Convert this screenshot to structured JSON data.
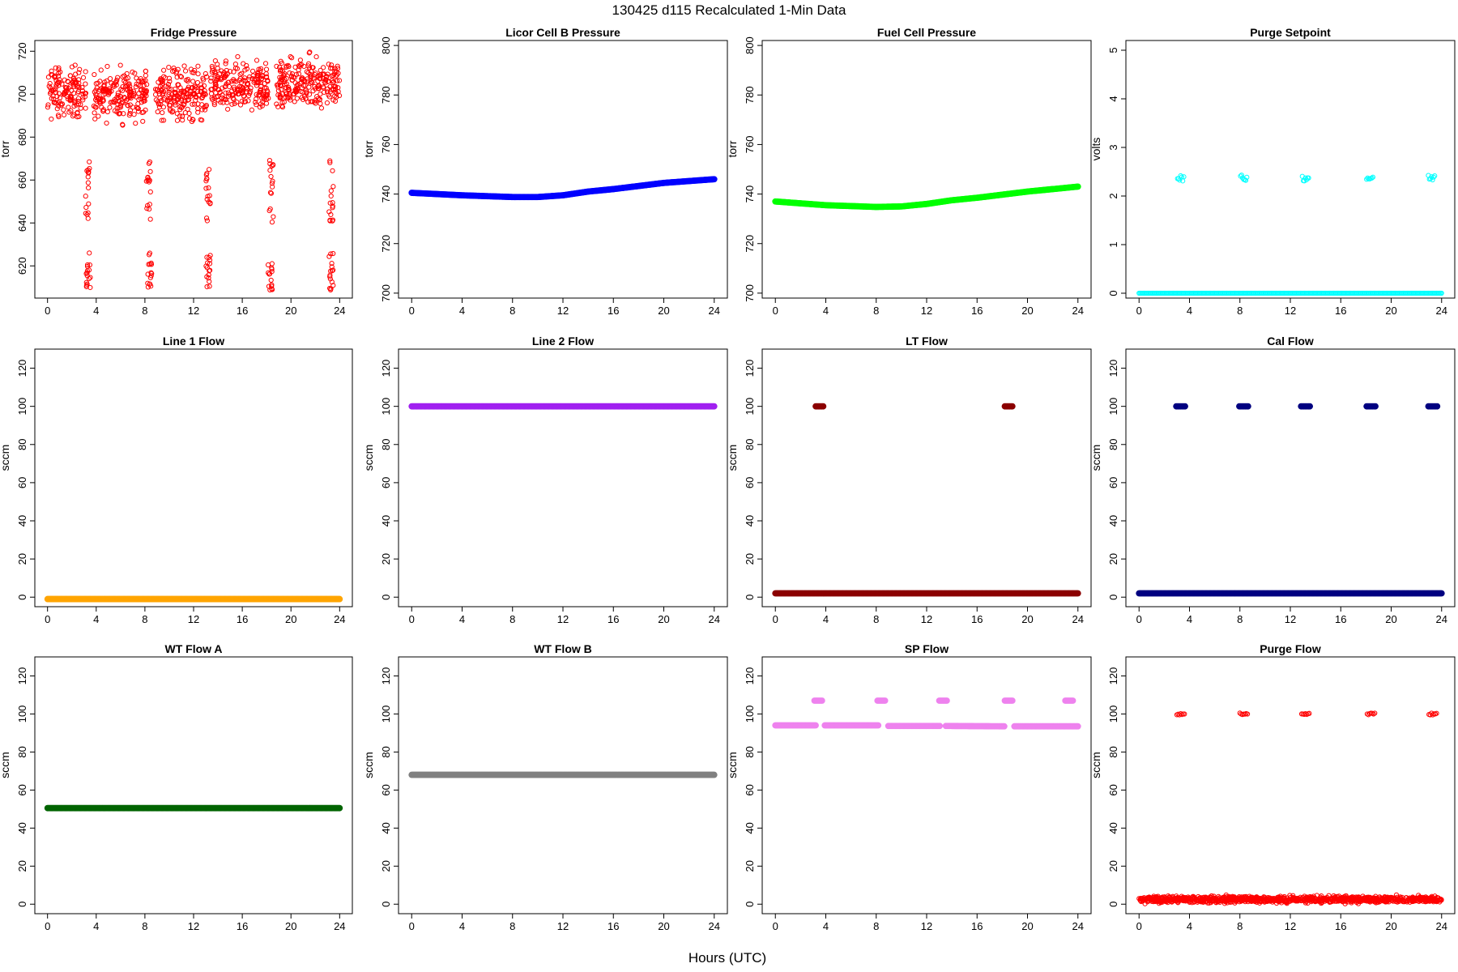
{
  "figure": {
    "title": "130425   d115   Recalculated 1-Min Data",
    "xlabel": "Hours (UTC)"
  },
  "chart_data": [
    {
      "type": "scatter",
      "title": "Fridge Pressure",
      "ylabel": "torr",
      "color": "#ff0000",
      "marker": "open",
      "xlim": [
        0,
        24
      ],
      "ylim": [
        605,
        725
      ],
      "xticks": [
        0,
        4,
        8,
        12,
        16,
        20,
        24
      ],
      "yticks": [
        620,
        640,
        660,
        680,
        700,
        720
      ],
      "series": [
        {
          "kind": "band",
          "segments": [
            [
              0,
              3.2,
              701
            ],
            [
              3.8,
              8.2,
              700
            ],
            [
              8.8,
              13.1,
              700
            ],
            [
              13.4,
              18.2,
              703
            ],
            [
              18.8,
              24,
              705
            ]
          ],
          "spread": 8
        },
        {
          "kind": "cluster",
          "x": [
            3.3,
            8.3,
            13.2,
            18.4,
            23.3
          ],
          "ylow": 640,
          "yhigh": 670
        },
        {
          "kind": "cluster",
          "x": [
            3.35,
            8.4,
            13.2,
            18.3,
            23.3
          ],
          "ylow": 608,
          "yhigh": 626
        }
      ]
    },
    {
      "type": "scatter",
      "title": "Licor Cell B Pressure",
      "ylabel": "torr",
      "color": "#0000ff",
      "marker": "filled",
      "xlim": [
        0,
        24
      ],
      "ylim": [
        698,
        802
      ],
      "xticks": [
        0,
        4,
        8,
        12,
        16,
        20,
        24
      ],
      "yticks": [
        700,
        720,
        740,
        760,
        780,
        800
      ],
      "series": [
        {
          "kind": "line",
          "x": [
            0,
            4,
            8,
            10,
            12,
            14,
            16,
            20,
            24
          ],
          "y": [
            740.5,
            739.5,
            738.8,
            738.8,
            739.5,
            741,
            742,
            744.5,
            746
          ]
        }
      ]
    },
    {
      "type": "scatter",
      "title": "Fuel Cell Pressure",
      "ylabel": "torr",
      "color": "#00ff00",
      "marker": "filled",
      "xlim": [
        0,
        24
      ],
      "ylim": [
        698,
        802
      ],
      "xticks": [
        0,
        4,
        8,
        12,
        16,
        20,
        24
      ],
      "yticks": [
        700,
        720,
        740,
        760,
        780,
        800
      ],
      "series": [
        {
          "kind": "line",
          "x": [
            0,
            4,
            8,
            10,
            12,
            14,
            16,
            20,
            24
          ],
          "y": [
            737,
            735.5,
            734.8,
            735,
            736,
            737.5,
            738.5,
            741,
            743
          ]
        }
      ]
    },
    {
      "type": "scatter",
      "title": "Purge Setpoint",
      "ylabel": "volts",
      "color": "#00ffff",
      "marker": "open",
      "xlim": [
        0,
        24
      ],
      "ylim": [
        -0.1,
        5.2
      ],
      "xticks": [
        0,
        4,
        8,
        12,
        16,
        20,
        24
      ],
      "yticks": [
        0,
        1,
        2,
        3,
        4,
        5
      ],
      "series": [
        {
          "kind": "line",
          "x": [
            0,
            24
          ],
          "y": [
            0,
            0
          ]
        },
        {
          "kind": "bumps",
          "x": [
            3.3,
            8.3,
            13.2,
            18.3,
            23.2
          ],
          "y": 2.37,
          "spread": 0.06,
          "width": 0.5
        }
      ]
    },
    {
      "type": "scatter",
      "title": "Line 1 Flow",
      "ylabel": "sccm",
      "color": "#ffa500",
      "marker": "filled",
      "xlim": [
        0,
        24
      ],
      "ylim": [
        -5,
        130
      ],
      "xticks": [
        0,
        4,
        8,
        12,
        16,
        20,
        24
      ],
      "yticks": [
        0,
        20,
        40,
        60,
        80,
        100,
        120
      ],
      "series": [
        {
          "kind": "line",
          "x": [
            0,
            24
          ],
          "y": [
            -1,
            -1
          ]
        }
      ]
    },
    {
      "type": "scatter",
      "title": "Line 2 Flow",
      "ylabel": "sccm",
      "color": "#a020f0",
      "marker": "filled",
      "xlim": [
        0,
        24
      ],
      "ylim": [
        -5,
        130
      ],
      "xticks": [
        0,
        4,
        8,
        12,
        16,
        20,
        24
      ],
      "yticks": [
        0,
        20,
        40,
        60,
        80,
        100,
        120
      ],
      "series": [
        {
          "kind": "line",
          "x": [
            0,
            24
          ],
          "y": [
            100,
            100
          ]
        }
      ]
    },
    {
      "type": "scatter",
      "title": "LT Flow",
      "ylabel": "sccm",
      "color": "#8b0000",
      "marker": "filled",
      "xlim": [
        0,
        24
      ],
      "ylim": [
        -5,
        130
      ],
      "xticks": [
        0,
        4,
        8,
        12,
        16,
        20,
        24
      ],
      "yticks": [
        0,
        20,
        40,
        60,
        80,
        100,
        120
      ],
      "series": [
        {
          "kind": "line",
          "x": [
            0,
            24
          ],
          "y": [
            2,
            2
          ]
        },
        {
          "kind": "bumps",
          "x": [
            3.5,
            18.5
          ],
          "y": 100,
          "spread": 0,
          "width": 0.6
        }
      ]
    },
    {
      "type": "scatter",
      "title": "Cal Flow",
      "ylabel": "sccm",
      "color": "#000080",
      "marker": "filled",
      "xlim": [
        0,
        24
      ],
      "ylim": [
        -5,
        130
      ],
      "xticks": [
        0,
        4,
        8,
        12,
        16,
        20,
        24
      ],
      "yticks": [
        0,
        20,
        40,
        60,
        80,
        100,
        120
      ],
      "series": [
        {
          "kind": "line",
          "x": [
            0,
            24
          ],
          "y": [
            2,
            2
          ]
        },
        {
          "kind": "bumps",
          "x": [
            3.3,
            8.3,
            13.2,
            18.4,
            23.3
          ],
          "y": 100,
          "spread": 0,
          "width": 0.7
        }
      ]
    },
    {
      "type": "scatter",
      "title": "WT Flow A",
      "ylabel": "sccm",
      "color": "#006400",
      "marker": "filled",
      "xlim": [
        0,
        24
      ],
      "ylim": [
        -5,
        130
      ],
      "xticks": [
        0,
        4,
        8,
        12,
        16,
        20,
        24
      ],
      "yticks": [
        0,
        20,
        40,
        60,
        80,
        100,
        120
      ],
      "series": [
        {
          "kind": "line",
          "x": [
            0,
            24
          ],
          "y": [
            50.5,
            50.5
          ]
        }
      ]
    },
    {
      "type": "scatter",
      "title": "WT Flow B",
      "ylabel": "sccm",
      "color": "#808080",
      "marker": "filled",
      "xlim": [
        0,
        24
      ],
      "ylim": [
        -5,
        130
      ],
      "xticks": [
        0,
        4,
        8,
        12,
        16,
        20,
        24
      ],
      "yticks": [
        0,
        20,
        40,
        60,
        80,
        100,
        120
      ],
      "series": [
        {
          "kind": "line",
          "x": [
            0,
            24
          ],
          "y": [
            68,
            68
          ]
        }
      ]
    },
    {
      "type": "scatter",
      "title": "SP Flow",
      "ylabel": "sccm",
      "color": "#ee82ee",
      "marker": "filled",
      "xlim": [
        0,
        24
      ],
      "ylim": [
        -5,
        130
      ],
      "xticks": [
        0,
        4,
        8,
        12,
        16,
        20,
        24
      ],
      "yticks": [
        0,
        20,
        40,
        60,
        80,
        100,
        120
      ],
      "series": [
        {
          "kind": "line",
          "x": [
            0,
            3.2,
            3.9,
            8.2,
            8.9,
            13.1,
            13.5,
            18.2,
            18.9,
            24
          ],
          "y": [
            94,
            94,
            94,
            94,
            93.7,
            93.7,
            93.7,
            93.5,
            93.5,
            93.5
          ],
          "gaps": [
            [
              3.2,
              3.9
            ],
            [
              8.2,
              8.9
            ],
            [
              13.1,
              13.5
            ],
            [
              18.2,
              18.9
            ]
          ]
        },
        {
          "kind": "bumps",
          "x": [
            3.4,
            8.4,
            13.3,
            18.5,
            23.3
          ],
          "y": 107,
          "spread": 0,
          "width": 0.6
        }
      ]
    },
    {
      "type": "scatter",
      "title": "Purge Flow",
      "ylabel": "sccm",
      "color": "#ff0000",
      "marker": "open",
      "xlim": [
        0,
        24
      ],
      "ylim": [
        -5,
        130
      ],
      "xticks": [
        0,
        4,
        8,
        12,
        16,
        20,
        24
      ],
      "yticks": [
        0,
        20,
        40,
        60,
        80,
        100,
        120
      ],
      "series": [
        {
          "kind": "band",
          "segments": [
            [
              0,
              24,
              2.5
            ]
          ],
          "spread": 1.2
        },
        {
          "kind": "bumps",
          "x": [
            3.3,
            8.3,
            13.2,
            18.4,
            23.3
          ],
          "y": 100,
          "spread": 0.5,
          "width": 0.6
        }
      ]
    }
  ]
}
